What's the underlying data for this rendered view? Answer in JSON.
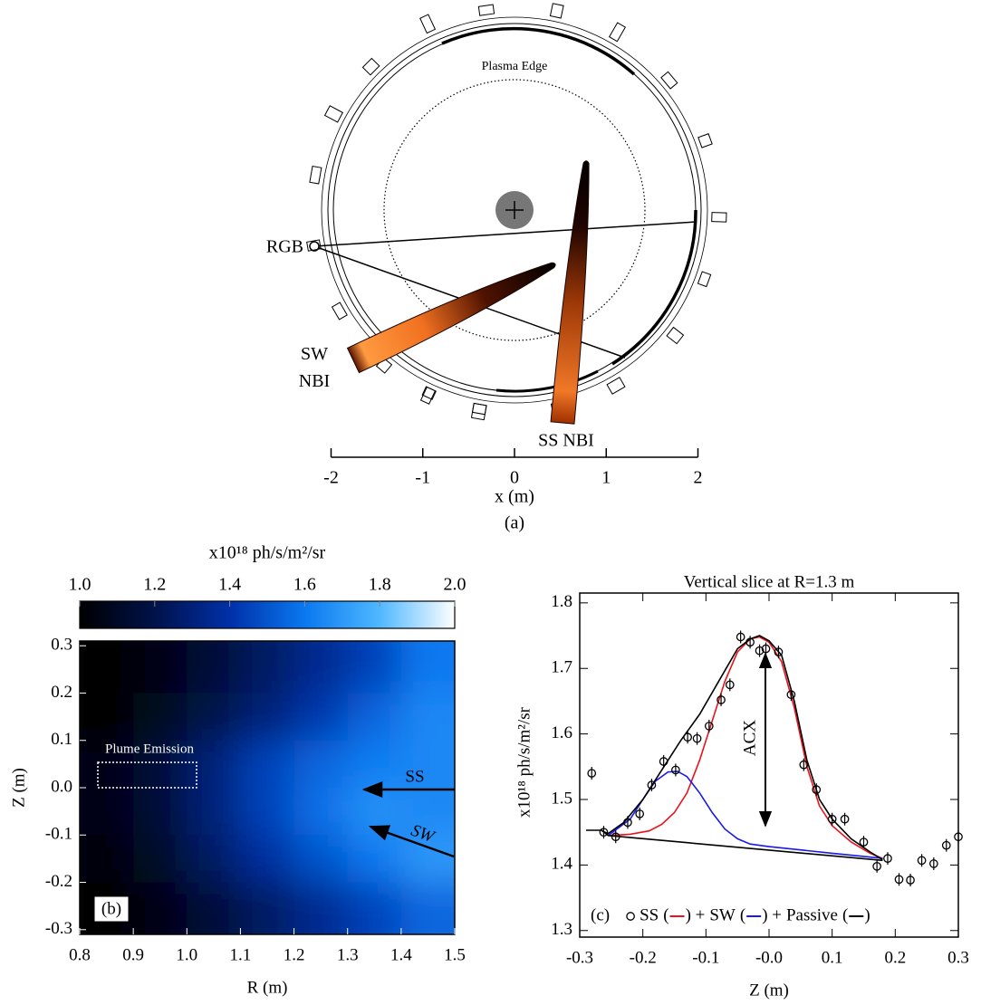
{
  "chart_data": [
    {
      "type": "diagram",
      "xlabel": "x (m)",
      "xlim": [
        -2,
        2
      ],
      "xticks": [
        -2,
        -1,
        0,
        1,
        2
      ],
      "caption": "(a)",
      "annotations": {
        "plasma_edge": "Plasma Edge",
        "rgb": "RGB",
        "sw_nbi": "SW NBI",
        "ss_nbi": "SS NBI"
      }
    },
    {
      "type": "heatmap",
      "xlabel": "R (m)",
      "ylabel": "Z (m)",
      "xlim": [
        0.8,
        1.5
      ],
      "ylim": [
        -0.31,
        0.31
      ],
      "xticks": [
        0.8,
        0.9,
        {
          "value": 1,
          "label": "1.0"
        },
        1.1,
        1.2,
        1.3,
        1.4,
        1.5
      ],
      "yticks": [
        0.3,
        0.2,
        0.1,
        {
          "value": 0,
          "label": "0.0"
        },
        -0.1,
        -0.2,
        -0.3
      ],
      "x": [
        0.85,
        0.95,
        1.05,
        1.15,
        1.25,
        1.35,
        1.45
      ],
      "y": [
        0.25,
        0.15,
        0.05,
        -0.05,
        -0.15,
        -0.25
      ],
      "z": [
        [
          1.0,
          1.05,
          1.15,
          1.25,
          1.35,
          1.45,
          1.6
        ],
        [
          1.0,
          1.08,
          1.2,
          1.3,
          1.42,
          1.55,
          1.65
        ],
        [
          1.05,
          1.15,
          1.3,
          1.45,
          1.55,
          1.62,
          1.65
        ],
        [
          1.05,
          1.15,
          1.3,
          1.45,
          1.58,
          1.68,
          1.65
        ],
        [
          1.02,
          1.1,
          1.25,
          1.38,
          1.5,
          1.6,
          1.7
        ],
        [
          1.0,
          1.05,
          1.15,
          1.25,
          1.35,
          1.45,
          1.55
        ]
      ],
      "colorbar": {
        "label": "x10¹⁸ ph/s/m²/sr",
        "lim": [
          1,
          2
        ],
        "ticks": [
          {
            "value": 1,
            "label": "1.0"
          },
          1.2,
          1.4,
          1.6,
          1.8,
          {
            "value": 2,
            "label": "2.0"
          }
        ],
        "colors": [
          "#000000",
          "#00124a",
          "#0030a8",
          "#0a78f0",
          "#4fb8ff",
          "#ffffff"
        ]
      },
      "annotations": {
        "plume": "Plume Emission",
        "ss": "SS",
        "sw": "SW",
        "panel": "(b)"
      }
    },
    {
      "type": "scatter",
      "title": "Vertical slice at R=1.3 m",
      "xlabel": "Z (m)",
      "ylabel": "x10¹⁸ ph/s/m²/sr",
      "xlim": [
        -0.3,
        0.3
      ],
      "ylim": [
        1.29,
        1.815
      ],
      "xticks": [
        -0.3,
        -0.2,
        -0.1,
        {
          "value": 0,
          "label": "-0.0"
        },
        0.1,
        0.2,
        0.3
      ],
      "yticks": [
        1.3,
        1.4,
        1.5,
        1.6,
        1.7,
        1.8
      ],
      "points": {
        "x": [
          -0.281,
          -0.262,
          -0.243,
          -0.224,
          -0.205,
          -0.186,
          -0.167,
          -0.148,
          -0.129,
          -0.114,
          -0.095,
          -0.076,
          -0.062,
          -0.045,
          -0.03,
          -0.015,
          -0.005,
          0.015,
          0.035,
          0.055,
          0.075,
          0.1,
          0.12,
          0.15,
          0.171,
          0.188,
          0.206,
          0.224,
          0.242,
          0.261,
          0.281,
          0.3
        ],
        "values": [
          1.54,
          1.45,
          1.443,
          1.465,
          1.478,
          1.522,
          1.558,
          1.545,
          1.595,
          1.593,
          1.612,
          1.652,
          1.675,
          1.748,
          1.74,
          1.727,
          1.73,
          1.725,
          1.66,
          1.553,
          1.515,
          1.47,
          1.47,
          1.435,
          1.398,
          1.41,
          1.378,
          1.377,
          1.407,
          1.402,
          1.43,
          1.443
        ]
      },
      "series": [
        {
          "name": "SS",
          "color": "#e8141c",
          "x": [
            -0.255,
            -0.22,
            -0.19,
            -0.17,
            -0.15,
            -0.13,
            -0.11,
            -0.09,
            -0.07,
            -0.05,
            -0.03,
            -0.015,
            0,
            0.02,
            0.04,
            0.06,
            0.08,
            0.1,
            0.13,
            0.16,
            0.18
          ],
          "values": [
            1.445,
            1.447,
            1.452,
            1.462,
            1.48,
            1.51,
            1.56,
            1.62,
            1.68,
            1.725,
            1.745,
            1.748,
            1.74,
            1.71,
            1.64,
            1.55,
            1.49,
            1.46,
            1.435,
            1.418,
            1.41
          ]
        },
        {
          "name": "SW",
          "color": "#1a1ae6",
          "x": [
            -0.255,
            -0.22,
            -0.2,
            -0.18,
            -0.16,
            -0.145,
            -0.13,
            -0.11,
            -0.09,
            -0.07,
            -0.05,
            -0.03,
            0,
            0.05,
            0.1,
            0.14,
            0.18
          ],
          "values": [
            1.445,
            1.47,
            1.5,
            1.528,
            1.542,
            1.543,
            1.535,
            1.51,
            1.48,
            1.455,
            1.44,
            1.432,
            1.428,
            1.423,
            1.418,
            1.414,
            1.41
          ]
        },
        {
          "name": "Passive",
          "color": "#000000",
          "x": [
            -0.29,
            -0.265,
            -0.255,
            0.18
          ],
          "values": [
            1.453,
            1.453,
            1.445,
            1.407
          ]
        }
      ],
      "total": {
        "color": "#000000",
        "x": [
          -0.265,
          -0.255,
          -0.23,
          -0.2,
          -0.17,
          -0.14,
          -0.11,
          -0.08,
          -0.05,
          -0.03,
          -0.015,
          0,
          0.02,
          0.04,
          0.06,
          0.08,
          0.1,
          0.13,
          0.16,
          0.18
        ],
        "values": [
          1.452,
          1.448,
          1.465,
          1.5,
          1.545,
          1.59,
          1.63,
          1.68,
          1.73,
          1.745,
          1.75,
          1.742,
          1.72,
          1.65,
          1.56,
          1.5,
          1.47,
          1.44,
          1.42,
          1.408
        ]
      },
      "legend_punctuation": [
        "(",
        ") +",
        ")"
      ],
      "annotations": {
        "acx": "ACX",
        "panel": "(c)"
      }
    }
  ]
}
